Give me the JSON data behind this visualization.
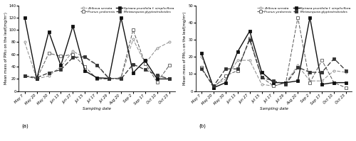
{
  "x_labels": [
    "May 7",
    "May 20",
    "May 30",
    "Jun 13",
    "Jun 27",
    "Jul 15",
    "Jul 17",
    "Jul 29",
    "Aug 20",
    "Sep 2",
    "Sep 17",
    "Oct 10",
    "Oct 23"
  ],
  "series_a": {
    "Zelkova serrata": [
      80,
      20,
      25,
      40,
      65,
      55,
      42,
      20,
      22,
      85,
      45,
      70,
      80
    ],
    "Prunus yedoensis": [
      25,
      20,
      62,
      57,
      60,
      40,
      20,
      20,
      22,
      100,
      45,
      15,
      42
    ],
    "Spiraea prunifolia f. simpliciflora": [
      120,
      20,
      97,
      42,
      106,
      33,
      22,
      21,
      120,
      30,
      50,
      20,
      20
    ],
    "Metasequoia glyptostroboides": [
      25,
      22,
      30,
      35,
      55,
      56,
      43,
      21,
      20,
      44,
      35,
      26,
      20
    ]
  },
  "series_b": {
    "Zelkova serrata": [
      20,
      3,
      7,
      18,
      18,
      4,
      3,
      5,
      15,
      6,
      6,
      12,
      11
    ],
    "Prunus yedoensis": [
      14,
      2,
      9,
      12,
      31,
      8,
      3,
      5,
      43,
      5,
      18,
      5,
      2
    ],
    "Spiraea prunifolia f. simpliciflora": [
      22,
      2,
      5,
      23,
      35,
      11,
      5,
      5,
      6,
      43,
      4,
      5,
      5
    ],
    "Metasequoia glyptostroboides": [
      13,
      3,
      13,
      13,
      30,
      8,
      6,
      4,
      14,
      11,
      11,
      19,
      12
    ]
  },
  "ylabel_a": "Mean mass of PM₁₀ on the leaf(mg/m²)",
  "ylabel_b": "Mean mass of PM₂.₅ on the leaf(mg/m²)",
  "xlabel": "Sampling date",
  "ylim_a": [
    0,
    140
  ],
  "ylim_b": [
    0,
    50
  ],
  "yticks_a": [
    0,
    20,
    40,
    60,
    80,
    100,
    120,
    140
  ],
  "yticks_b": [
    0,
    10,
    20,
    30,
    40,
    50
  ],
  "panel_labels": [
    "(a)",
    "(b)"
  ],
  "legend_row1": [
    "Zelkova serrata",
    "Prunus yedoensis"
  ],
  "legend_row2": [
    "Spiraea prunifolia f. simpliciflora",
    "Metasequoia glyptostroboides"
  ],
  "background_color": "#ffffff",
  "colors": {
    "Zelkova serrata": "#888888",
    "Prunus yedoensis": "#555555",
    "Spiraea prunifolia f. simpliciflora": "#111111",
    "Metasequoia glyptostroboides": "#333333"
  }
}
